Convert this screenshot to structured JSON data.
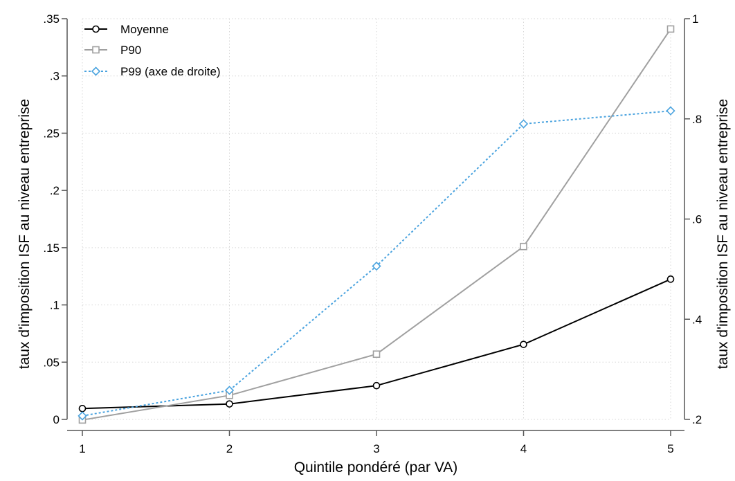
{
  "chart_data": {
    "type": "line",
    "title": "",
    "xlabel": "Quintile pondéré (par VA)",
    "ylabel_left": "taux d'imposition ISF au niveau entreprise",
    "ylabel_right": "taux d'imposition ISF au niveau entreprise",
    "x": [
      1,
      2,
      3,
      4,
      5
    ],
    "x_ticks": [
      "1",
      "2",
      "3",
      "4",
      "5"
    ],
    "ylim_left": [
      0,
      0.35
    ],
    "y_ticks_left": [
      {
        "value": 0,
        "label": "0"
      },
      {
        "value": 0.05,
        "label": ".05"
      },
      {
        "value": 0.1,
        "label": ".1"
      },
      {
        "value": 0.15,
        "label": ".15"
      },
      {
        "value": 0.2,
        "label": ".2"
      },
      {
        "value": 0.25,
        "label": ".25"
      },
      {
        "value": 0.3,
        "label": ".3"
      },
      {
        "value": 0.35,
        "label": ".35"
      }
    ],
    "ylim_right": [
      0.2,
      1.0
    ],
    "y_ticks_right": [
      {
        "value": 0.2,
        "label": ".2"
      },
      {
        "value": 0.4,
        "label": ".4"
      },
      {
        "value": 0.6,
        "label": ".6"
      },
      {
        "value": 0.8,
        "label": ".8"
      },
      {
        "value": 1.0,
        "label": "1"
      }
    ],
    "grid": true,
    "legend_position": "top-left",
    "series": [
      {
        "name": "Moyenne",
        "axis": "left",
        "color": "#000000",
        "marker": "circle",
        "dash": "solid",
        "values": [
          0.0095,
          0.0135,
          0.0295,
          0.0655,
          0.1225
        ]
      },
      {
        "name": "P90",
        "axis": "left",
        "color": "#a0a0a0",
        "marker": "square",
        "dash": "solid",
        "values": [
          -0.0005,
          0.021,
          0.057,
          0.151,
          0.341
        ]
      },
      {
        "name": "P99 (axe de droite)",
        "axis": "right",
        "color": "#4aa3df",
        "marker": "diamond",
        "dash": "dotted",
        "values": [
          0.207,
          0.258,
          0.506,
          0.79,
          0.816
        ]
      }
    ]
  }
}
